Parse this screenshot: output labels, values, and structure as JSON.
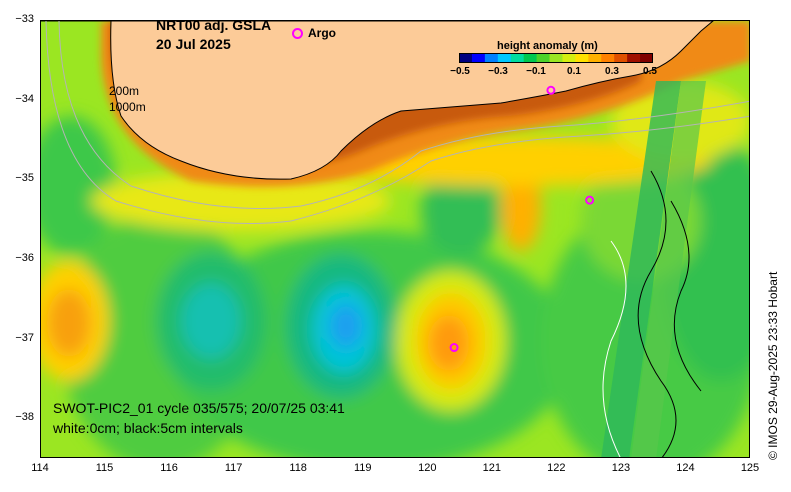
{
  "title": {
    "product": "NRT00 adj. GSLA",
    "date": "20 Jul 2025"
  },
  "legend": {
    "argo_label": "Argo",
    "argo_color": "#ff00ff"
  },
  "colorbar": {
    "title": "height anomaly (m)",
    "ticks": [
      "−0.5",
      "−0.3",
      "−0.1",
      "0.1",
      "0.3",
      "0.5"
    ],
    "range": [
      -0.5,
      0.5
    ],
    "colors": [
      "#000080",
      "#0000ff",
      "#0080ff",
      "#00c8ff",
      "#00dca0",
      "#00c850",
      "#4cd22a",
      "#9be622",
      "#d4ee10",
      "#ffe000",
      "#ffb000",
      "#ff8000",
      "#e05000",
      "#a01000",
      "#800000"
    ]
  },
  "depth_labels": {
    "shallow": "200m",
    "deep": "1000m"
  },
  "axes": {
    "lon_ticks": [
      "114",
      "115",
      "116",
      "117",
      "118",
      "119",
      "120",
      "121",
      "122",
      "123",
      "124",
      "125"
    ],
    "lat_ticks": [
      "−33",
      "−34",
      "−35",
      "−36",
      "−37",
      "−38"
    ],
    "lon_range": [
      114,
      125
    ],
    "lat_range": [
      -38.5,
      -33
    ]
  },
  "caption": {
    "line1": "SWOT-PIC2_01 cycle 035/575; 20/07/25 03:41",
    "line2": "white:0cm; black:5cm intervals"
  },
  "credit": "© IMOS 29-Aug-2025 23:33 Hobart",
  "colors": {
    "land": "#fccb98",
    "sea_base": "#9be622",
    "shelf_high": "#f08a12",
    "eddy_low": "#00c8e8",
    "eddy_core": "#1ea0f0",
    "eddy_high": "#ff9a10",
    "coast_line": "#000000",
    "isobath": "#b4b4b4",
    "argo": "#ff00ff"
  },
  "argo_floats": [
    {
      "lon": 122.5,
      "lat": -35.25
    },
    {
      "lon": 120.4,
      "lat": -37.1
    },
    {
      "lon": 121.9,
      "lat": -33.87
    }
  ]
}
